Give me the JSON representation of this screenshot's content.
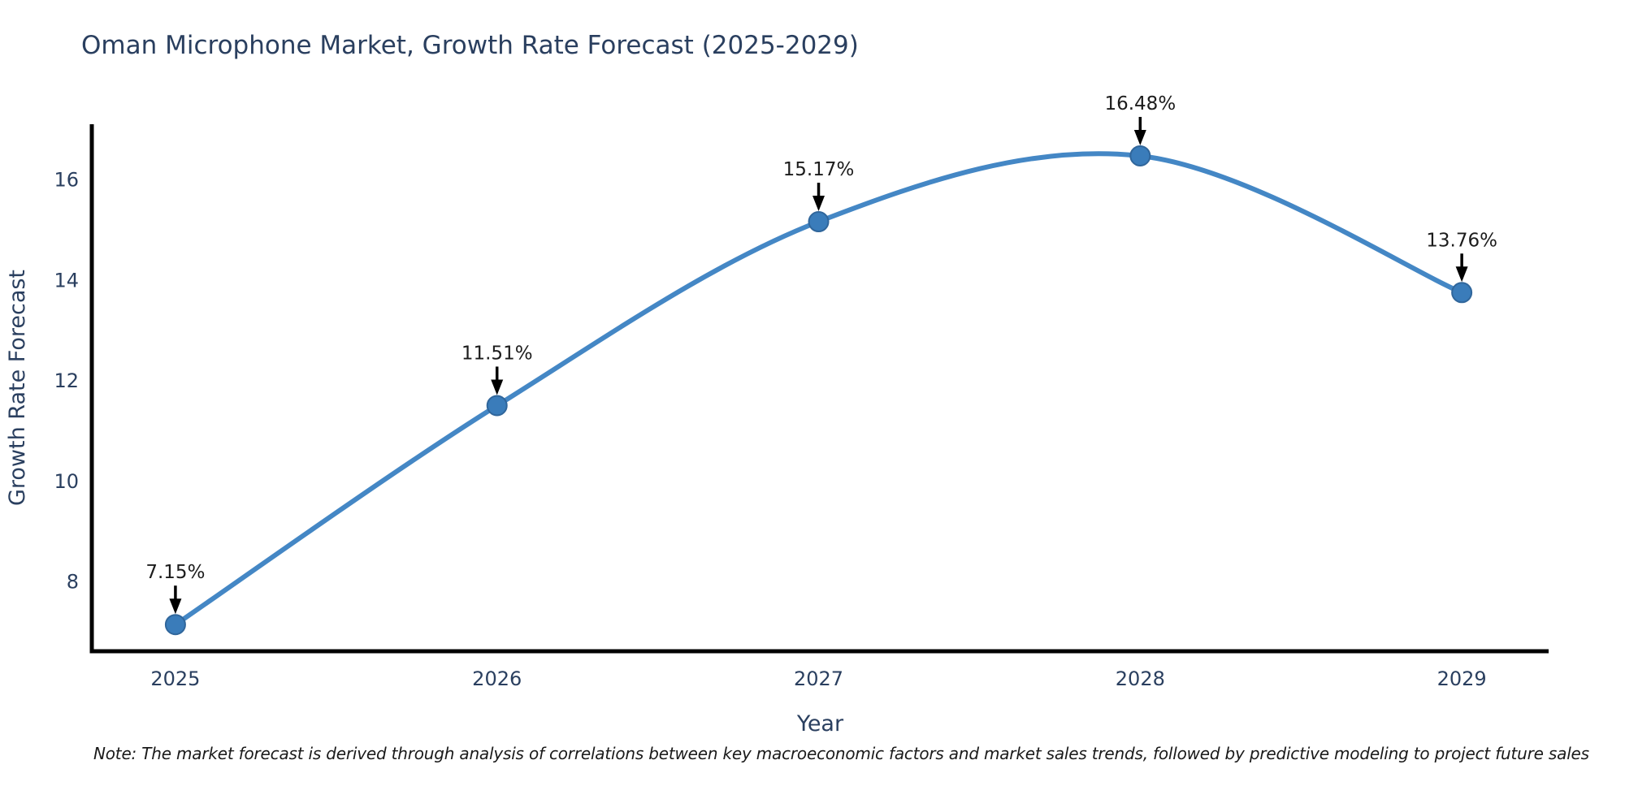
{
  "chart_data": {
    "type": "line",
    "title": "Oman Microphone Market, Growth Rate Forecast (2025-2029)",
    "xlabel": "Year",
    "ylabel": "Growth Rate Forecast",
    "x": [
      2025,
      2026,
      2027,
      2028,
      2029
    ],
    "categories": [
      "2025",
      "2026",
      "2027",
      "2028",
      "2029"
    ],
    "series": [
      {
        "name": "Growth Rate Forecast",
        "values": [
          7.15,
          11.51,
          15.17,
          16.48,
          13.76
        ],
        "point_labels": [
          "7.15%",
          "11.51%",
          "15.17%",
          "16.48%",
          "13.76%"
        ]
      }
    ],
    "yticks": [
      8,
      10,
      12,
      14,
      16
    ],
    "xticks": [
      "2025",
      "2026",
      "2027",
      "2028",
      "2029"
    ],
    "xlim": [
      2024.74,
      2029.27
    ],
    "ylim": [
      6.62,
      17.11
    ],
    "line_shape": "spline",
    "grid": false,
    "legend": "none",
    "annotations": "value labels above each point with downward black arrows",
    "colors": {
      "line": "#4487c5",
      "marker": "#3a7cba",
      "marker_edge": "#30669b",
      "axis_line": "#000000",
      "title_text": "#2a3f5f",
      "axis_title_text": "#2a3f5f",
      "tick_text": "#2a3f5f",
      "annotation_text": "#1c1c1c",
      "arrow": "#000000",
      "background": "#ffffff"
    }
  },
  "note": {
    "text": "Note: The market forecast is derived through analysis of correlations between key macroeconomic factors and market sales trends, followed by predictive modeling to project future sales"
  }
}
